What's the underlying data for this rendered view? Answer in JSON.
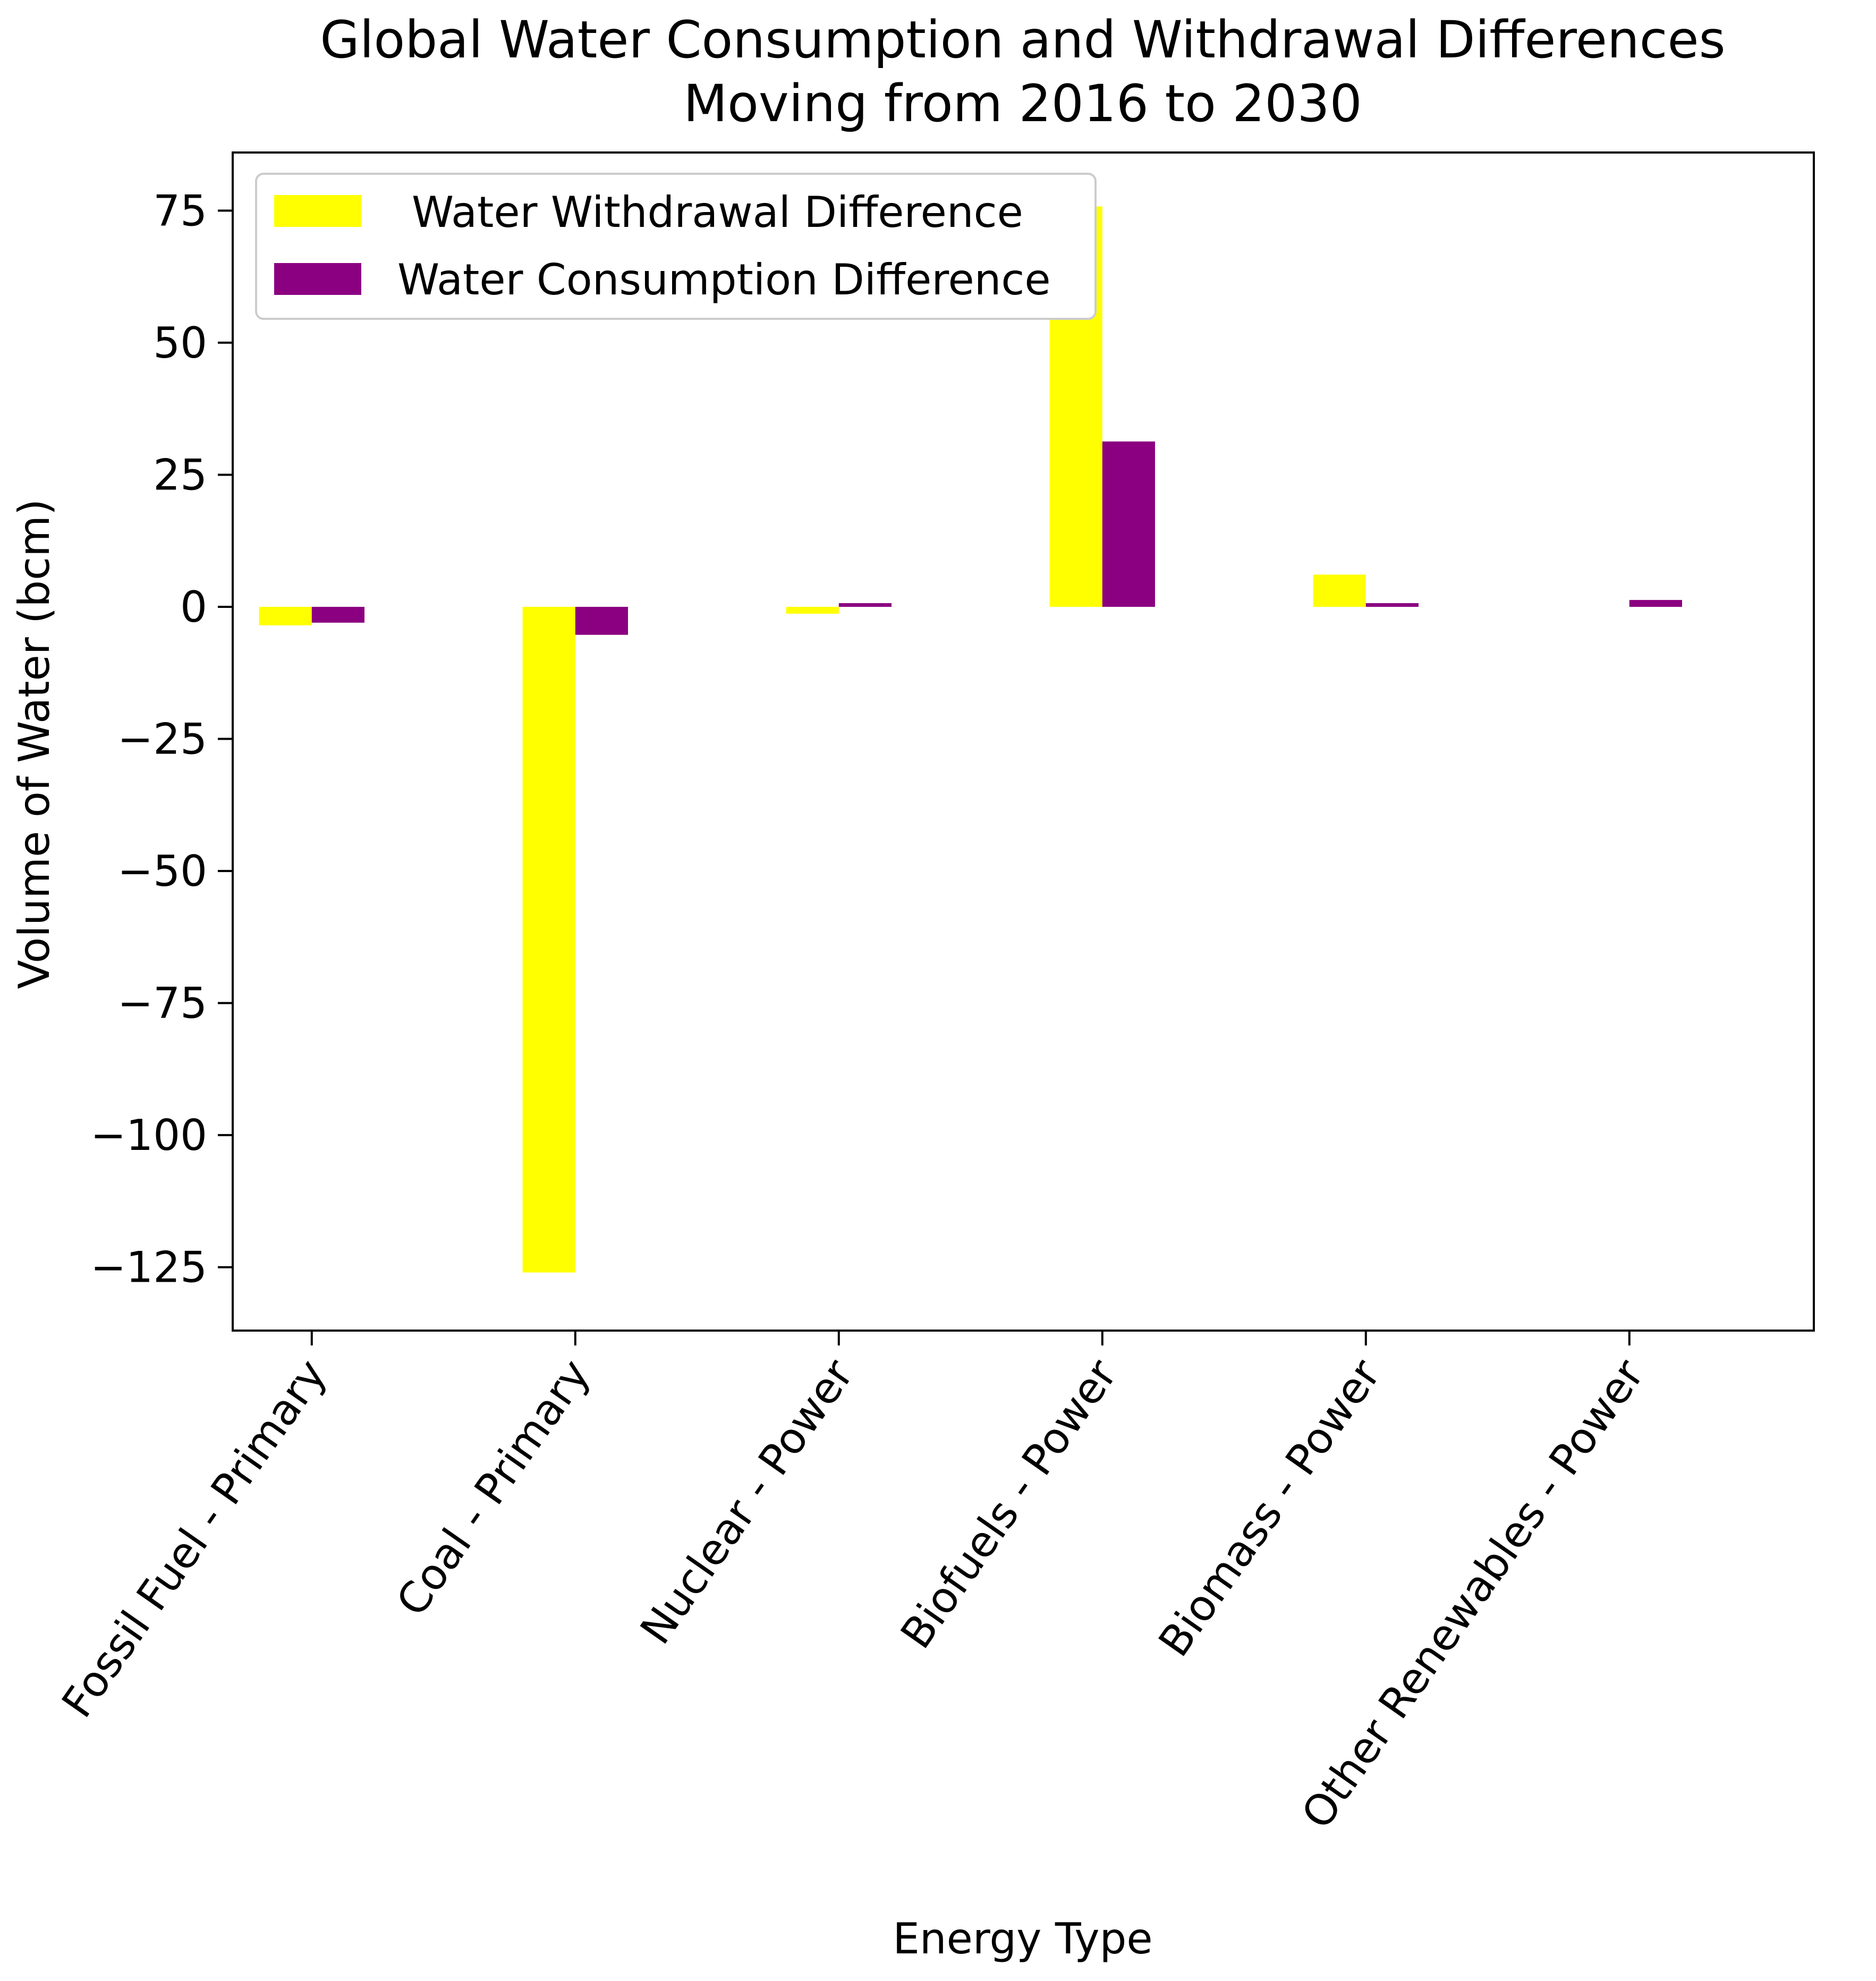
{
  "chart_data": {
    "type": "bar",
    "title_line1": "Global  Water Consumption and Withdrawal Differences",
    "title_line2": "Moving from 2016 to 2030",
    "xlabel": "Energy Type",
    "ylabel": "Volume of Water (bcm)",
    "ylim": [
      -137,
      86
    ],
    "yticks": [
      {
        "value": 75,
        "label": "75"
      },
      {
        "value": 50,
        "label": "50"
      },
      {
        "value": 25,
        "label": "25"
      },
      {
        "value": 0,
        "label": "0"
      },
      {
        "value": -25,
        "label": "−25"
      },
      {
        "value": -50,
        "label": "−50"
      },
      {
        "value": -75,
        "label": "−75"
      },
      {
        "value": -100,
        "label": "−100"
      },
      {
        "value": -125,
        "label": "−125"
      }
    ],
    "categories": [
      "Fossil Fuel - Primary",
      "Coal - Primary",
      "Nuclear - Power",
      "Biofuels - Power",
      "Biomass - Power",
      "Other Renewables - Power"
    ],
    "series": [
      {
        "name": "Water Withdrawal Difference",
        "color": "#ffff00",
        "values": [
          -3.5,
          -126,
          -1.3,
          75.8,
          6.1,
          0.0
        ]
      },
      {
        "name": "Water Consumption Difference",
        "color": "#8b0080",
        "values": [
          -3.0,
          -5.3,
          0.7,
          31.3,
          0.7,
          1.3
        ]
      }
    ],
    "legend_position": "upper-left"
  }
}
